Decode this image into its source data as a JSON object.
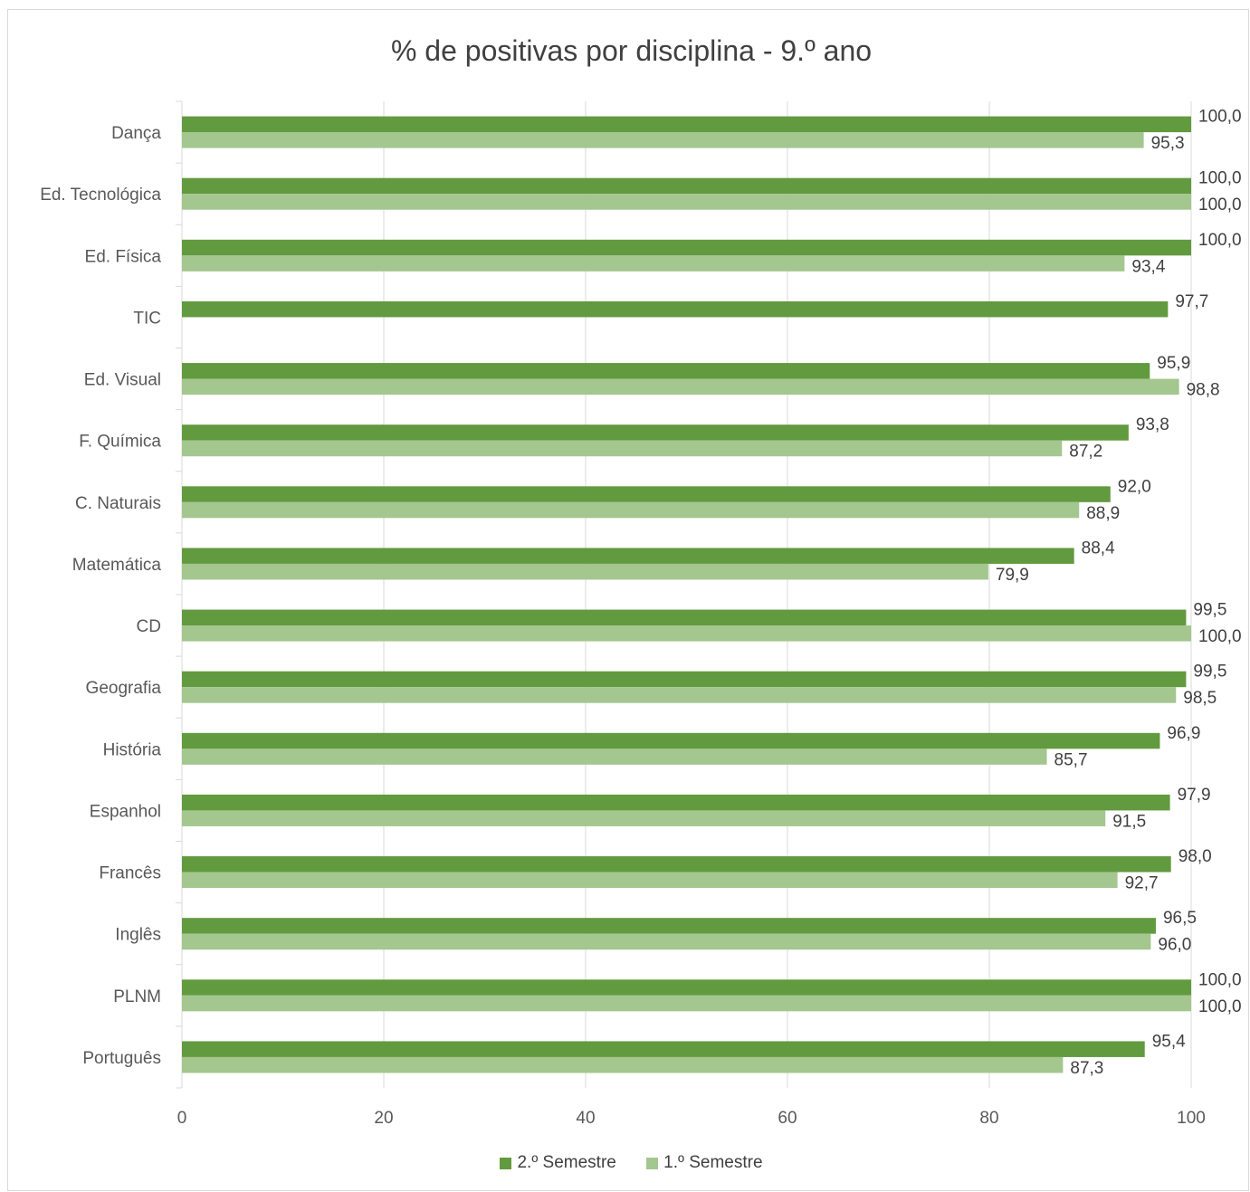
{
  "chart_data": {
    "type": "bar",
    "orientation": "horizontal",
    "title": "% de positivas por disciplina - 9.º ano",
    "categories": [
      "Dança",
      "Ed. Tecnológica",
      "Ed. Física",
      "TIC",
      "Ed. Visual",
      "F. Química",
      "C. Naturais",
      "Matemática",
      "CD",
      "Geografia",
      "História",
      "Espanhol",
      "Francês",
      "Inglês",
      "PLNM",
      "Português"
    ],
    "series": [
      {
        "name": "2.º Semestre",
        "color": "#629a3f",
        "values": [
          100.0,
          100.0,
          100.0,
          97.7,
          95.9,
          93.8,
          92.0,
          88.4,
          99.5,
          99.5,
          96.9,
          97.9,
          98.0,
          96.5,
          100.0,
          95.4
        ],
        "labels": [
          "100,0",
          "100,0",
          "100,0",
          "97,7",
          "95,9",
          "93,8",
          "92,0",
          "88,4",
          "99,5",
          "99,5",
          "96,9",
          "97,9",
          "98,0",
          "96,5",
          "100,0",
          "95,4"
        ]
      },
      {
        "name": "1.º Semestre",
        "color": "#a4c68f",
        "values": [
          95.3,
          100.0,
          93.4,
          null,
          98.8,
          87.2,
          88.9,
          79.9,
          100.0,
          98.5,
          85.7,
          91.5,
          92.7,
          96.0,
          100.0,
          87.3
        ],
        "labels": [
          "95,3",
          "100,0",
          "93,4",
          "",
          "98,8",
          "87,2",
          "88,9",
          "79,9",
          "100,0",
          "98,5",
          "85,7",
          "91,5",
          "92,7",
          "96,0",
          "100,0",
          "87,3"
        ]
      }
    ],
    "xlim": [
      0,
      100
    ],
    "xticks": [
      "0",
      "20",
      "40",
      "60",
      "80",
      "100"
    ],
    "grid": true,
    "legend": "bottom"
  }
}
